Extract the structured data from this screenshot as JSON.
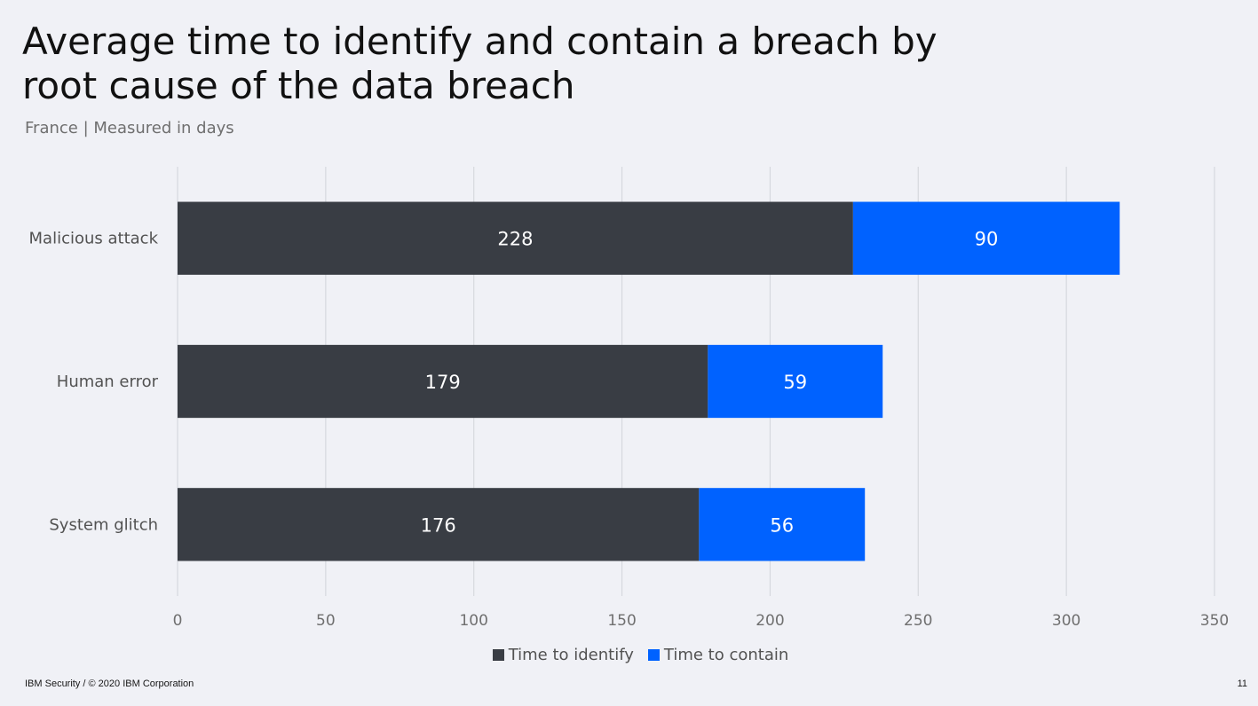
{
  "slide": {
    "footer": "IBM Security / © 2020 IBM Corporation",
    "page_number": "11"
  },
  "colors": {
    "identify": "#393d44",
    "contain": "#0062ff",
    "grid": "#d6d8de",
    "axis_text": "#6f6f6f",
    "category_text": "#525252"
  },
  "chart_data": {
    "type": "bar",
    "orientation": "horizontal",
    "stacked": true,
    "title": "Average time to identify and contain a breach by root cause of the data breach",
    "subtitle": "France | Measured in days",
    "categories": [
      "Malicious attack",
      "Human error",
      "System glitch"
    ],
    "series": [
      {
        "name": "Time to identify",
        "values": [
          228,
          179,
          176
        ]
      },
      {
        "name": "Time to contain",
        "values": [
          90,
          59,
          56
        ]
      }
    ],
    "xlim": [
      0,
      350
    ],
    "xticks": [
      0,
      50,
      100,
      150,
      200,
      250,
      300,
      350
    ],
    "grid": true,
    "legend_position": "bottom-center",
    "data_labels": true
  }
}
